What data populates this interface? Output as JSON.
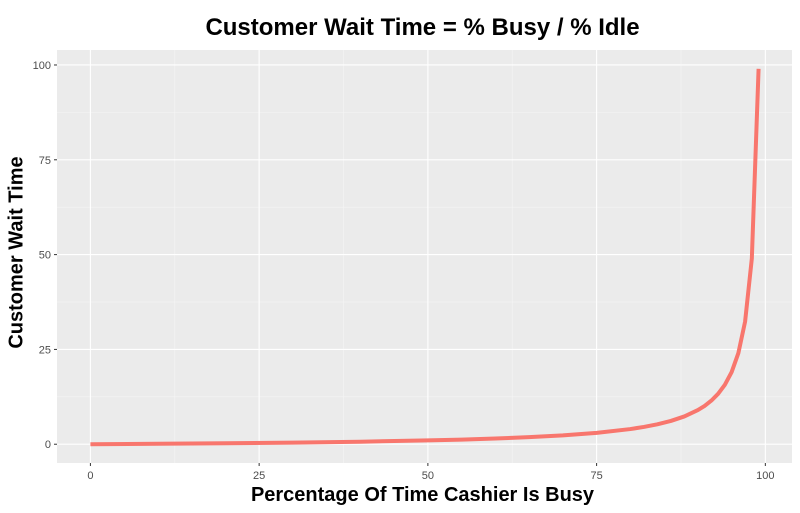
{
  "chart_data": {
    "type": "line",
    "title": "Customer Wait Time = % Busy / % Idle",
    "xlabel": "Percentage Of Time Cashier Is Busy",
    "ylabel": "Customer Wait Time",
    "xlim": [
      -4.95,
      103.95
    ],
    "ylim": [
      -4.95,
      103.95
    ],
    "x_ticks": [
      0,
      25,
      50,
      75,
      100
    ],
    "x_tick_labels": [
      "0",
      "25",
      "50",
      "75",
      "100"
    ],
    "y_ticks": [
      0,
      25,
      50,
      75,
      100
    ],
    "y_tick_labels": [
      "0",
      "25",
      "50",
      "75",
      "100"
    ],
    "grid": true,
    "panel_background": "#ebebeb",
    "line_color": "#f8766d",
    "series": [
      {
        "x": [
          0,
          10,
          20,
          30,
          40,
          50,
          55,
          60,
          65,
          70,
          75,
          80,
          82,
          84,
          86,
          88,
          90,
          91,
          92,
          93,
          94,
          95,
          96,
          97,
          98,
          99
        ],
        "y": [
          0,
          0.11,
          0.25,
          0.43,
          0.67,
          1,
          1.22,
          1.5,
          1.86,
          2.33,
          3,
          4,
          4.56,
          5.25,
          6.14,
          7.33,
          9,
          10.11,
          11.5,
          13.29,
          15.67,
          19,
          24,
          32.33,
          49,
          99
        ]
      }
    ]
  }
}
